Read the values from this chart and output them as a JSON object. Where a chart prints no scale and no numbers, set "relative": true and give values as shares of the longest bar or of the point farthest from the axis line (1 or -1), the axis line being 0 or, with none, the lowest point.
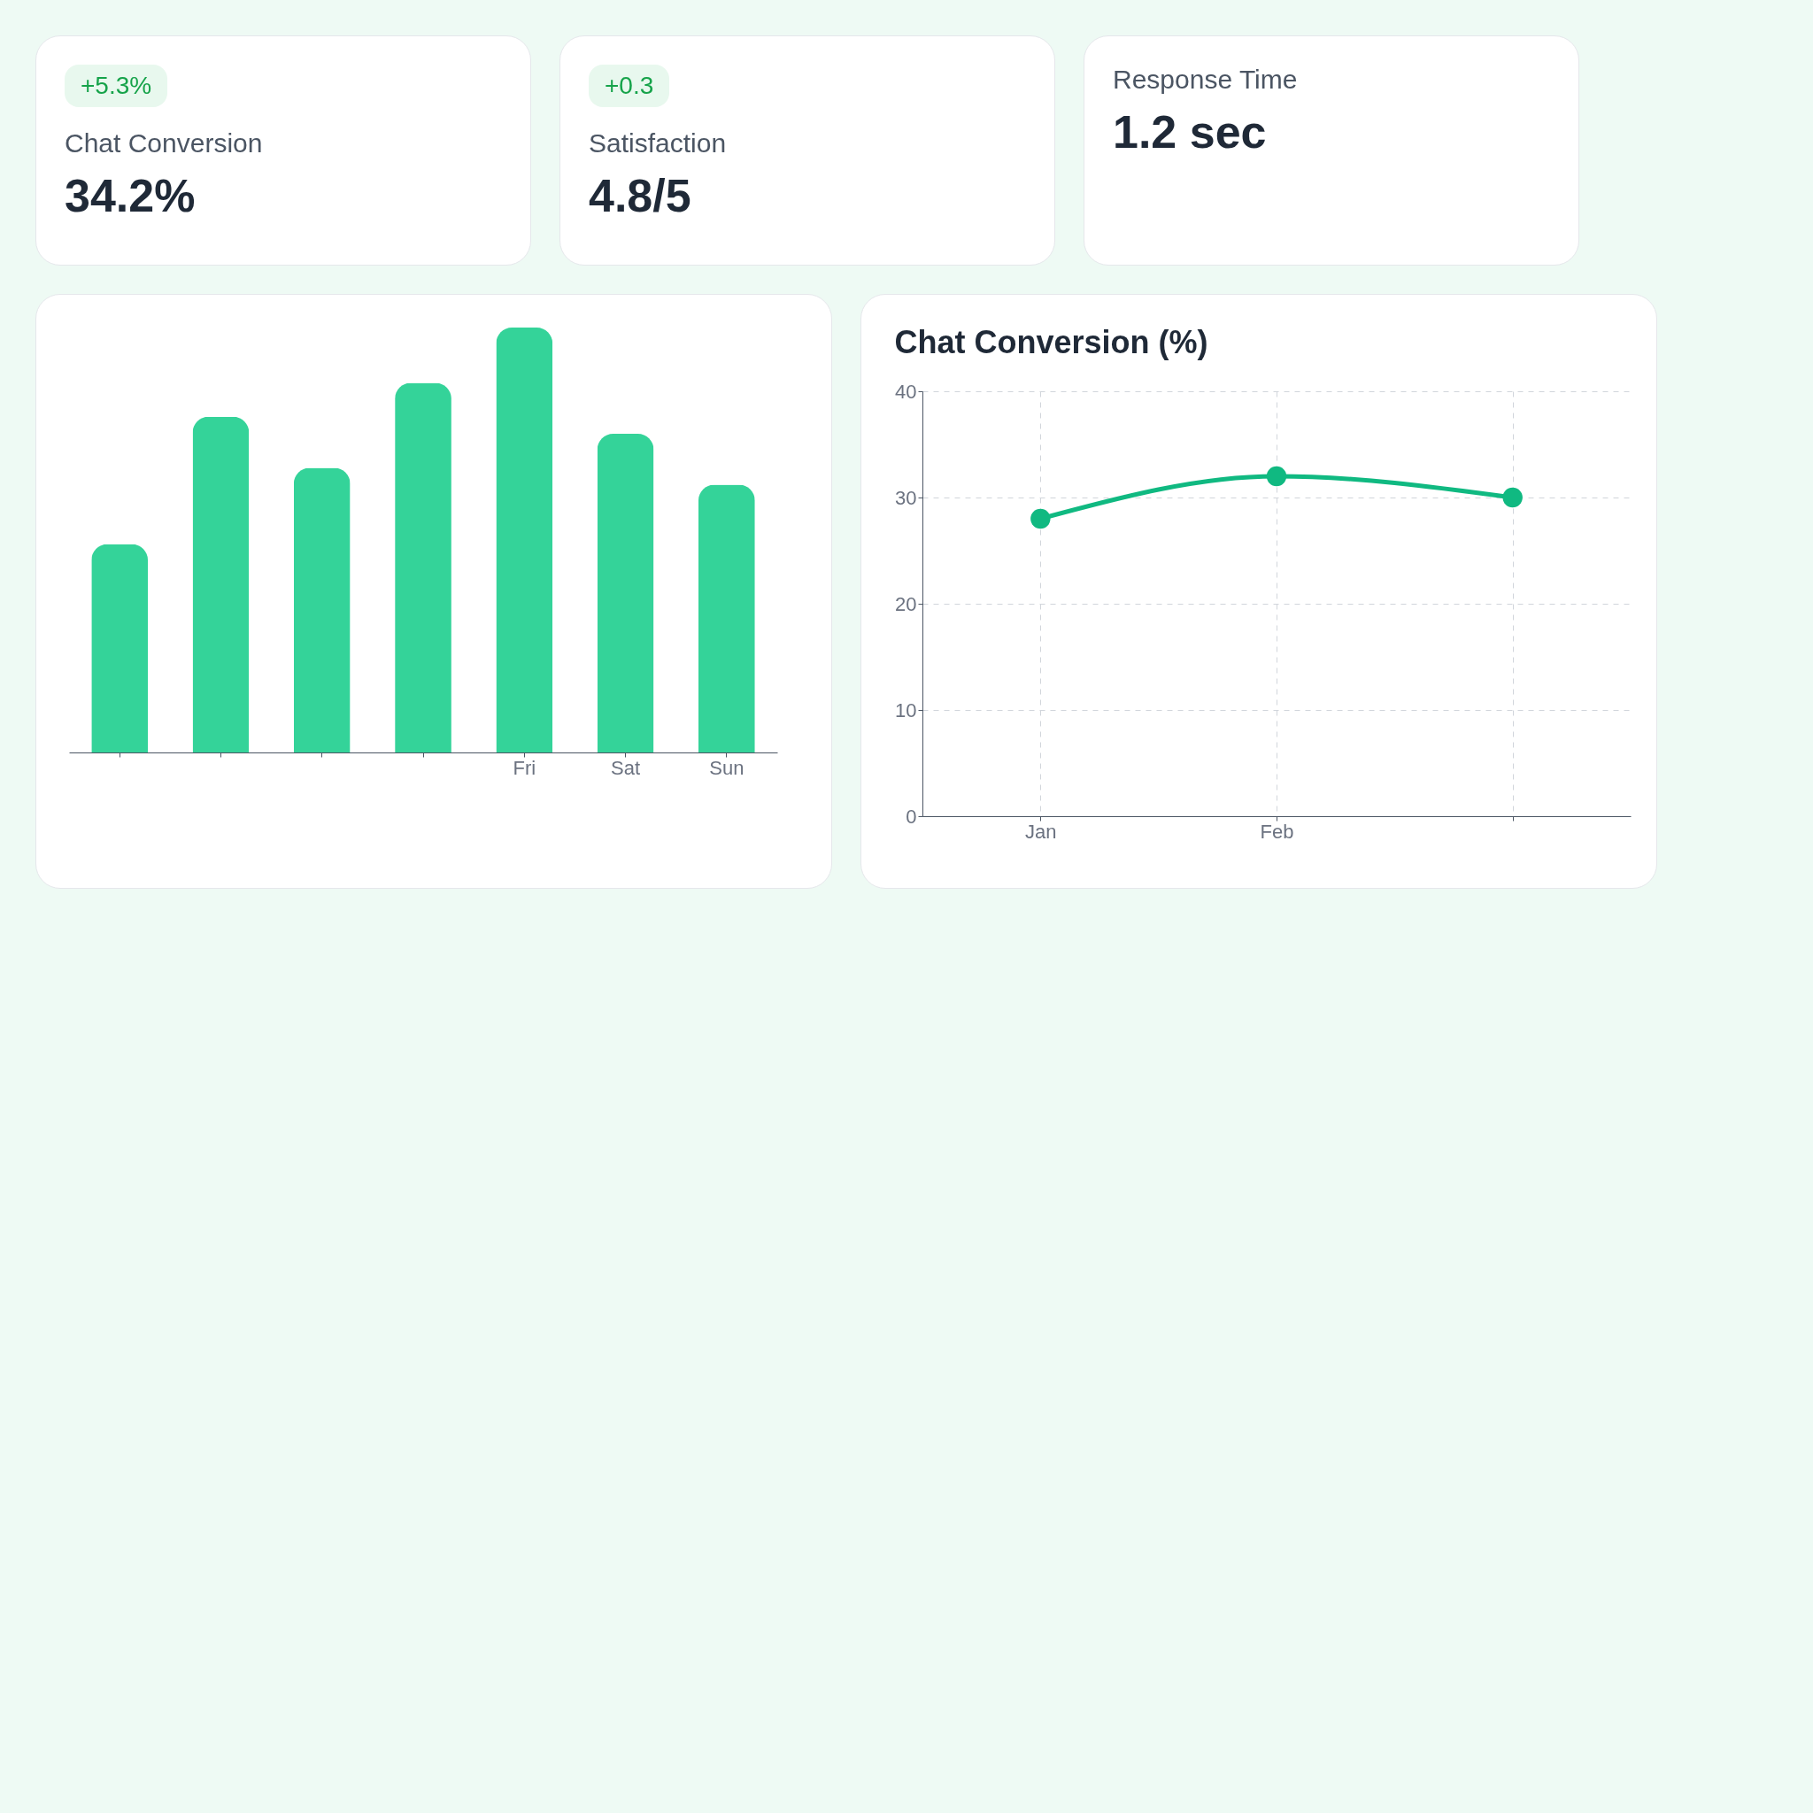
{
  "chart_data": [
    {
      "type": "other",
      "title": "Chat Conversion",
      "annotations": [
        "34.2%",
        "+5.3%"
      ]
    },
    {
      "type": "other",
      "title": "Satisfaction",
      "annotations": [
        "4.8/5",
        "+0.3"
      ]
    },
    {
      "type": "other",
      "title": "Response Time",
      "annotations": [
        "1.2 sec"
      ]
    },
    {
      "type": "bar",
      "categories": [
        null,
        null,
        null,
        null,
        "Fri",
        "Sat",
        "Sun"
      ],
      "values": [
        0.49,
        0.79,
        0.67,
        0.87,
        1,
        0.75,
        0.63
      ],
      "color": "#34d399",
      "relative": true
    },
    {
      "type": "line",
      "title": "Chat Conversion (%)",
      "categories": [
        "Jan",
        "Feb",
        null
      ],
      "values": [
        28,
        32,
        30
      ],
      "color": "#10b981",
      "marker": "circle",
      "ylim": [
        0,
        40
      ],
      "yticks": [
        0,
        10,
        20,
        30,
        40
      ],
      "grid": true
    }
  ]
}
